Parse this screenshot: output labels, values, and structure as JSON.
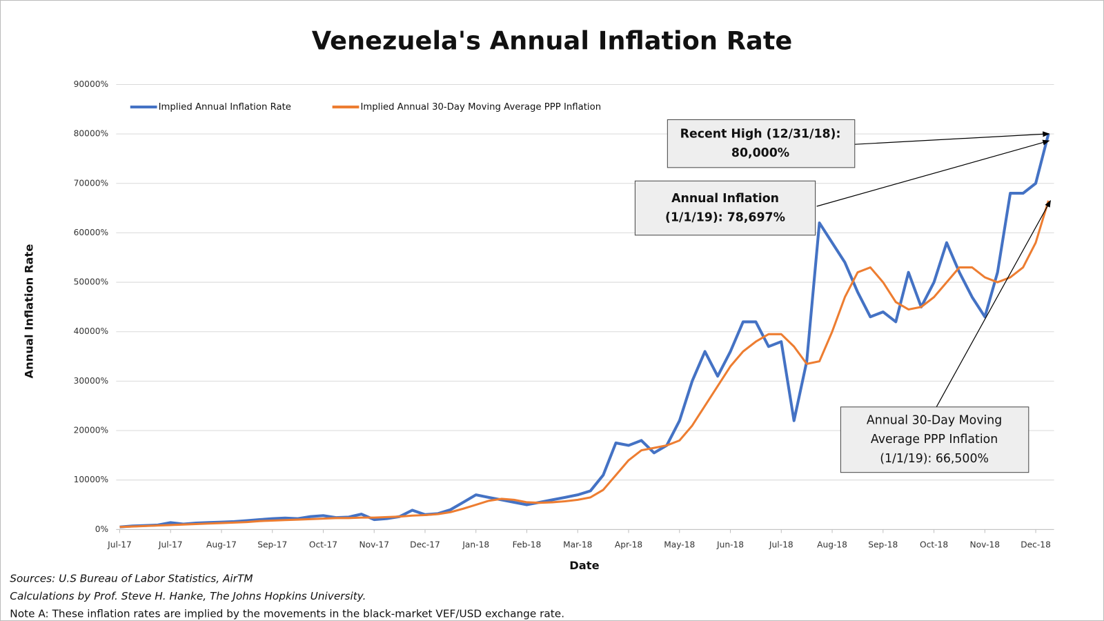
{
  "chart_data": {
    "type": "line",
    "title": "Venezuela's Annual Inflation Rate",
    "y_label": "Annual Inflation Rate",
    "x_label": "Date",
    "categories": [
      "Jul-17",
      null,
      null,
      null,
      "Jul-17",
      null,
      null,
      null,
      "Aug-17",
      null,
      null,
      null,
      "Sep-17",
      null,
      null,
      null,
      "Oct-17",
      null,
      null,
      null,
      "Nov-17",
      null,
      null,
      null,
      "Dec-17",
      null,
      null,
      null,
      "Jan-18",
      null,
      null,
      null,
      "Feb-18",
      null,
      null,
      null,
      "Mar-18",
      null,
      null,
      null,
      "Apr-18",
      null,
      null,
      null,
      "May-18",
      null,
      null,
      null,
      "Jun-18",
      null,
      null,
      null,
      "Jul-18",
      null,
      null,
      null,
      "Aug-18",
      null,
      null,
      null,
      "Sep-18",
      null,
      null,
      null,
      "Oct-18",
      null,
      null,
      null,
      "Nov-18",
      null,
      null,
      null,
      "Dec-18",
      null
    ],
    "series": [
      {
        "name": "Implied Annual Inflation Rate",
        "color": "#4472c4",
        "values": [
          500,
          700,
          800,
          900,
          1400,
          1100,
          1300,
          1400,
          1500,
          1600,
          1800,
          2000,
          2200,
          2300,
          2200,
          2600,
          2800,
          2400,
          2500,
          3100,
          2000,
          2200,
          2600,
          3900,
          3000,
          3200,
          4000,
          5500,
          7000,
          6500,
          6000,
          5500,
          5000,
          5500,
          6000,
          6500,
          7000,
          7800,
          11000,
          17500,
          17000,
          18000,
          15500,
          17000,
          22000,
          30000,
          36000,
          31000,
          36000,
          42000,
          42000,
          37000,
          38000,
          22000,
          34000,
          62000,
          58000,
          54000,
          48000,
          43000,
          44000,
          42000,
          52000,
          45000,
          50000,
          58000,
          52000,
          47000,
          43000,
          52000,
          68000,
          68000,
          70000,
          80000
        ]
      },
      {
        "name": "Implied Annual 30-Day Moving Average PPP Inflation",
        "color": "#ed7d31",
        "values": [
          500,
          600,
          700,
          800,
          900,
          1000,
          1100,
          1200,
          1300,
          1400,
          1500,
          1700,
          1800,
          1900,
          2000,
          2100,
          2200,
          2300,
          2300,
          2400,
          2400,
          2500,
          2600,
          2800,
          2900,
          3100,
          3500,
          4200,
          5000,
          5800,
          6200,
          6000,
          5500,
          5400,
          5500,
          5700,
          6000,
          6500,
          8000,
          11000,
          14000,
          16000,
          16500,
          17000,
          18000,
          21000,
          25000,
          29000,
          33000,
          36000,
          38000,
          39500,
          39500,
          37000,
          33500,
          34000,
          40000,
          47000,
          52000,
          53000,
          50000,
          46000,
          44500,
          45000,
          47000,
          50000,
          53000,
          53000,
          51000,
          50000,
          51000,
          53000,
          58000,
          66500
        ]
      }
    ],
    "ylim": [
      0,
      90000
    ],
    "yticks": [
      {
        "value": 0,
        "label": "0%"
      },
      {
        "value": 10000,
        "label": "10000%"
      },
      {
        "value": 20000,
        "label": "20000%"
      },
      {
        "value": 30000,
        "label": "30000%"
      },
      {
        "value": 40000,
        "label": "40000%"
      },
      {
        "value": 50000,
        "label": "50000%"
      },
      {
        "value": 60000,
        "label": "60000%"
      },
      {
        "value": 70000,
        "label": "70000%"
      },
      {
        "value": 80000,
        "label": "80000%"
      },
      {
        "value": 90000,
        "label": "90000%"
      }
    ],
    "grid": true,
    "legend": "top-left",
    "annotations": [
      {
        "lines": [
          "Recent High (12/31/18):",
          "80,000%"
        ]
      },
      {
        "lines": [
          "Annual Inflation",
          "(1/1/19): 78,697%"
        ]
      },
      {
        "lines": [
          "Annual 30-Day Moving",
          "Average PPP Inflation",
          "(1/1/19): 66,500%"
        ]
      }
    ],
    "notes": [
      "Sources: U.S Bureau of Labor Statistics, AirTM",
      "Calculations by Prof. Steve H. Hanke, The Johns Hopkins University.",
      "Note A: These inflation rates are implied by the movements in the black-market VEF/USD exchange rate."
    ]
  }
}
